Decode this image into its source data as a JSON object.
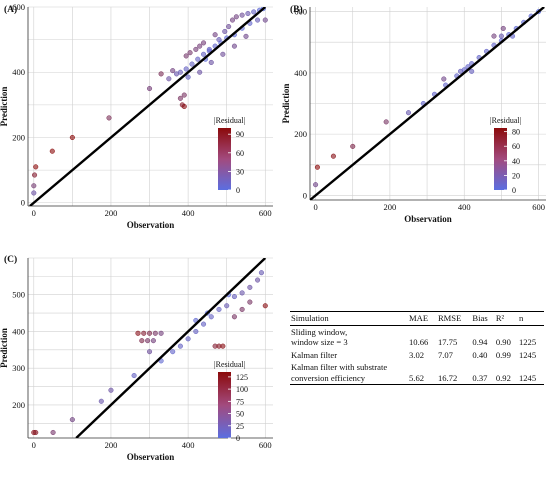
{
  "colors": {
    "residual_low": "#5b6ee1",
    "residual_high": "#8b0a0a",
    "identity_line": "#000000",
    "grid": "#d0d0d0"
  },
  "chart_data": [
    {
      "type": "scatter",
      "panel": "(A)",
      "xlabel": "Observation",
      "ylabel": "Prediction",
      "xlim": [
        -15,
        620
      ],
      "ylim": [
        -10,
        600
      ],
      "xticks": [
        0,
        200,
        400,
        600
      ],
      "yticks": [
        0,
        200,
        400,
        600
      ],
      "legend": {
        "title": "|Residual|",
        "ticks": [
          0,
          30,
          60,
          90
        ],
        "range": [
          0,
          100
        ],
        "placement": "right-inside"
      },
      "reference_line": "y = x",
      "grid": true,
      "points": [
        [
          0,
          30
        ],
        [
          0,
          52
        ],
        [
          2,
          85
        ],
        [
          5,
          110
        ],
        [
          48,
          158
        ],
        [
          100,
          200
        ],
        [
          195,
          260
        ],
        [
          300,
          350
        ],
        [
          330,
          395
        ],
        [
          350,
          380
        ],
        [
          360,
          405
        ],
        [
          370,
          395
        ],
        [
          380,
          320
        ],
        [
          385,
          300
        ],
        [
          390,
          295
        ],
        [
          390,
          330
        ],
        [
          395,
          450
        ],
        [
          400,
          385
        ],
        [
          405,
          460
        ],
        [
          420,
          470
        ],
        [
          430,
          480
        ],
        [
          440,
          490
        ],
        [
          445,
          440
        ],
        [
          455,
          470
        ],
        [
          470,
          515
        ],
        [
          480,
          500
        ],
        [
          495,
          525
        ],
        [
          505,
          540
        ],
        [
          515,
          560
        ],
        [
          525,
          570
        ],
        [
          540,
          575
        ],
        [
          555,
          580
        ],
        [
          570,
          585
        ],
        [
          585,
          590
        ],
        [
          595,
          595
        ],
        [
          380,
          400
        ],
        [
          395,
          410
        ],
        [
          410,
          425
        ],
        [
          425,
          440
        ],
        [
          440,
          455
        ],
        [
          455,
          465
        ],
        [
          470,
          480
        ],
        [
          485,
          490
        ],
        [
          500,
          505
        ],
        [
          520,
          515
        ],
        [
          540,
          535
        ],
        [
          560,
          550
        ],
        [
          580,
          560
        ],
        [
          600,
          560
        ],
        [
          430,
          400
        ],
        [
          460,
          430
        ],
        [
          490,
          455
        ],
        [
          520,
          480
        ],
        [
          550,
          510
        ]
      ]
    },
    {
      "type": "scatter",
      "panel": "(B)",
      "xlabel": "Observation",
      "ylabel": "Prediction",
      "xlim": [
        -15,
        620
      ],
      "ylim": [
        -15,
        615
      ],
      "xticks": [
        0,
        200,
        400,
        600
      ],
      "yticks": [
        0,
        200,
        400,
        600
      ],
      "legend": {
        "title": "|Residual|",
        "ticks": [
          0,
          20,
          40,
          60,
          80
        ],
        "range": [
          0,
          85
        ],
        "placement": "right-inside"
      },
      "reference_line": "y = x",
      "grid": true,
      "points": [
        [
          0,
          35
        ],
        [
          5,
          92
        ],
        [
          48,
          128
        ],
        [
          100,
          160
        ],
        [
          190,
          240
        ],
        [
          250,
          270
        ],
        [
          290,
          300
        ],
        [
          320,
          330
        ],
        [
          350,
          360
        ],
        [
          380,
          390
        ],
        [
          400,
          410
        ],
        [
          420,
          430
        ],
        [
          440,
          450
        ],
        [
          460,
          470
        ],
        [
          480,
          490
        ],
        [
          500,
          505
        ],
        [
          520,
          525
        ],
        [
          540,
          545
        ],
        [
          560,
          565
        ],
        [
          580,
          585
        ],
        [
          600,
          600
        ],
        [
          345,
          380
        ],
        [
          420,
          405
        ],
        [
          480,
          520
        ],
        [
          500,
          520
        ],
        [
          530,
          520
        ],
        [
          505,
          545
        ],
        [
          390,
          405
        ],
        [
          410,
          420
        ]
      ]
    },
    {
      "type": "scatter",
      "panel": "(C)",
      "xlabel": "Observation",
      "ylabel": "Prediction",
      "xlim": [
        -15,
        620
      ],
      "ylim": [
        110,
        600
      ],
      "xticks": [
        0,
        200,
        400,
        600
      ],
      "yticks": [
        200,
        300,
        400,
        500
      ],
      "legend": {
        "title": "|Residual|",
        "ticks": [
          0,
          25,
          50,
          75,
          100,
          125
        ],
        "range": [
          0,
          135
        ],
        "placement": "right-inside"
      },
      "reference_line": "y = x",
      "grid": true,
      "points": [
        [
          0,
          125
        ],
        [
          5,
          125
        ],
        [
          50,
          125
        ],
        [
          100,
          160
        ],
        [
          175,
          210
        ],
        [
          200,
          240
        ],
        [
          260,
          280
        ],
        [
          270,
          395
        ],
        [
          285,
          395
        ],
        [
          300,
          395
        ],
        [
          315,
          395
        ],
        [
          330,
          395
        ],
        [
          280,
          375
        ],
        [
          295,
          375
        ],
        [
          310,
          375
        ],
        [
          300,
          345
        ],
        [
          470,
          360
        ],
        [
          480,
          360
        ],
        [
          490,
          360
        ],
        [
          330,
          320
        ],
        [
          360,
          345
        ],
        [
          380,
          360
        ],
        [
          400,
          380
        ],
        [
          420,
          400
        ],
        [
          440,
          420
        ],
        [
          460,
          440
        ],
        [
          480,
          460
        ],
        [
          500,
          470
        ],
        [
          520,
          495
        ],
        [
          540,
          505
        ],
        [
          560,
          520
        ],
        [
          580,
          540
        ],
        [
          590,
          560
        ],
        [
          600,
          470
        ],
        [
          520,
          440
        ],
        [
          540,
          460
        ],
        [
          560,
          480
        ],
        [
          420,
          430
        ],
        [
          450,
          450
        ],
        [
          505,
          500
        ]
      ]
    }
  ],
  "table": {
    "headers": [
      "Simulation",
      "MAE",
      "RMSE",
      "Bias",
      "R²",
      "n"
    ],
    "rows": [
      {
        "simulation": "Sliding window,\n    window size = 3",
        "mae": "10.66",
        "rmse": "17.75",
        "bias": "0.94",
        "r2": "0.90",
        "n": "1225"
      },
      {
        "simulation": "Kalman filter",
        "mae": "3.02",
        "rmse": "7.07",
        "bias": "0.40",
        "r2": "0.99",
        "n": "1245"
      },
      {
        "simulation": "Kalman filter with substrate\nconversion efficiency",
        "mae": "5.62",
        "rmse": "16.72",
        "bias": "0.37",
        "r2": "0.92",
        "n": "1245"
      }
    ]
  }
}
